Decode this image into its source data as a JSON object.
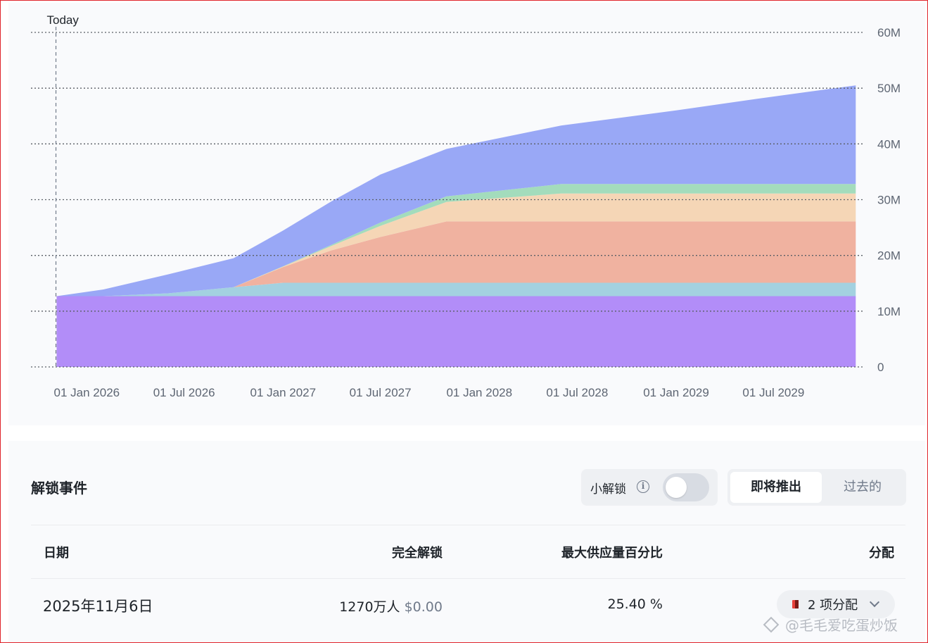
{
  "chart_data": {
    "type": "area",
    "today_label": "Today",
    "y_ticks": [
      "0",
      "10M",
      "20M",
      "30M",
      "40M",
      "50M",
      "60M"
    ],
    "ylim": [
      0,
      60000000
    ],
    "x_ticks": [
      "01 Jan 2026",
      "01 Jul 2026",
      "01 Jan 2027",
      "01 Jul 2027",
      "01 Jan 2028",
      "01 Jul 2028",
      "01 Jan 2029",
      "01 Jul 2029"
    ],
    "x": [
      "2025-11-06",
      "2026-02-01",
      "2026-06-01",
      "2026-10-01",
      "2027-01-01",
      "2027-04-01",
      "2027-07-01",
      "2027-11-01",
      "2028-06-01",
      "2029-01-01",
      "2029-06-01",
      "2029-12-01"
    ],
    "series": [
      {
        "color": "#b28df8",
        "values": [
          12700000,
          12700000,
          12700000,
          12700000,
          12700000,
          12700000,
          12700000,
          12700000,
          12700000,
          12700000,
          12700000,
          12700000
        ]
      },
      {
        "color": "#a3d1e0",
        "values": [
          0,
          0,
          500000,
          1600000,
          2400000,
          2400000,
          2400000,
          2400000,
          2400000,
          2400000,
          2400000,
          2400000
        ]
      },
      {
        "color": "#f0b2a0",
        "values": [
          0,
          0,
          0,
          0,
          2800000,
          5800000,
          8200000,
          11000000,
          11000000,
          11000000,
          11000000,
          11000000
        ]
      },
      {
        "color": "#f5d6b6",
        "values": [
          0,
          0,
          0,
          0,
          100000,
          800000,
          2000000,
          3500000,
          5000000,
          5000000,
          5000000,
          5000000
        ]
      },
      {
        "color": "#a3dcbc",
        "values": [
          0,
          0,
          0,
          0,
          50000,
          200000,
          600000,
          1000000,
          1700000,
          1700000,
          1700000,
          1700000
        ]
      },
      {
        "color": "#99a8f6",
        "values": [
          0,
          1200000,
          3400000,
          5200000,
          6400000,
          7800000,
          8600000,
          8500000,
          10500000,
          13200000,
          15300000,
          17700000
        ]
      }
    ],
    "grid": true
  },
  "unlock_events": {
    "title": "解锁事件",
    "small_unlock_label": "小解锁",
    "tabs": [
      "即将推出",
      "过去的"
    ],
    "columns": [
      "日期",
      "完全解锁",
      "最大供应量百分比",
      "分配"
    ],
    "rows": [
      {
        "date": "2025年11月6日",
        "unlock_amount": "1270万人",
        "unlock_value": "$0.00",
        "percent": "25.40 %",
        "allocation": "2 项分配"
      }
    ]
  },
  "watermark": "@毛毛爱吃蛋炒饭",
  "colors": {
    "accent_purple": "#b28df8",
    "accent_blue": "#99a8f6",
    "text": "#1e2329",
    "muted": "#707a8a"
  },
  "icons": [
    "info-icon",
    "chevron-down-icon",
    "allocation-color-icon",
    "watermark-diamond-icon"
  ]
}
